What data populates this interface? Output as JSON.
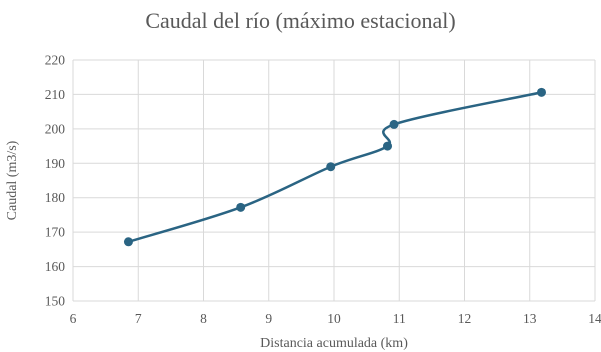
{
  "chart_data": {
    "type": "line",
    "title": "Caudal del río (máximo estacional)",
    "xlabel": "Distancia acumulada (km)",
    "ylabel": "Caudal (m3/s)",
    "xlim": [
      6,
      14
    ],
    "ylim": [
      150,
      220
    ],
    "xticks": [
      6,
      7,
      8,
      9,
      10,
      11,
      12,
      13,
      14
    ],
    "yticks": [
      150,
      160,
      170,
      180,
      190,
      200,
      210,
      220
    ],
    "grid": true,
    "smooth": true,
    "series_color": "#2a6483",
    "grid_color": "#d9d9d9",
    "series": [
      {
        "points": [
          {
            "x": 6.85,
            "y": 167.2
          },
          {
            "x": 8.57,
            "y": 177.2
          },
          {
            "x": 9.95,
            "y": 189.0
          },
          {
            "x": 10.82,
            "y": 195.0
          },
          {
            "x": 10.92,
            "y": 201.3
          },
          {
            "x": 13.18,
            "y": 210.6
          }
        ]
      }
    ]
  }
}
